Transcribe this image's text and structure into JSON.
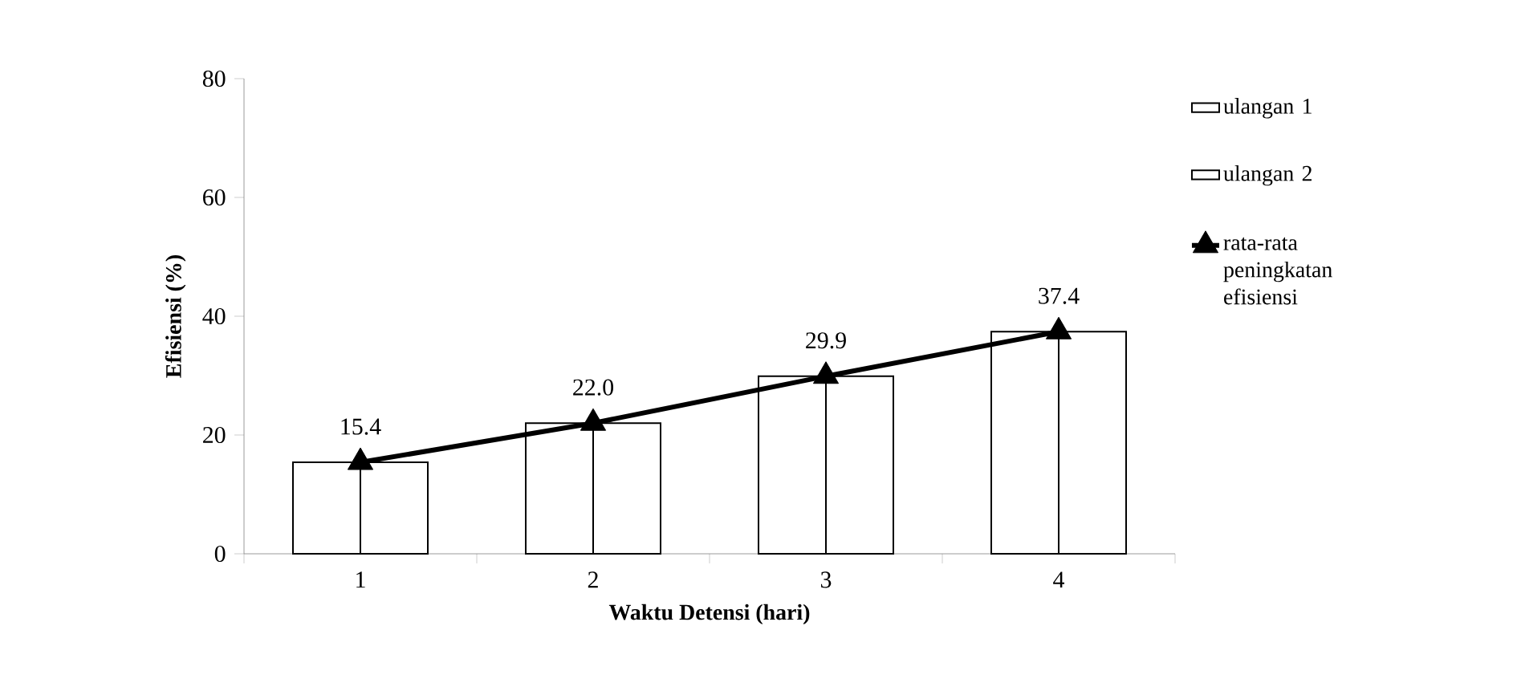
{
  "chart_data": {
    "type": "bar",
    "xlabel": "Waktu Detensi (hari)",
    "ylabel": "Efisiensi (%)",
    "categories": [
      "1",
      "2",
      "3",
      "4"
    ],
    "series": [
      {
        "name": "ulangan 1",
        "color": "#ffffff",
        "values": [
          15.4,
          22.0,
          29.9,
          37.4
        ]
      },
      {
        "name": "ulangan 2",
        "color": "#ffffff",
        "values": [
          15.4,
          22.0,
          29.9,
          37.4
        ]
      },
      {
        "name": "rata-rata peningkatan efisiensi",
        "type": "line",
        "color": "#000000",
        "marker": "triangle",
        "values": [
          15.4,
          22.0,
          29.9,
          37.4
        ],
        "value_labels": [
          "15.4",
          "22.0",
          "29.9",
          "37.4"
        ]
      }
    ],
    "ylim": [
      0,
      80
    ],
    "yticks": [
      0,
      20,
      40,
      60,
      80
    ],
    "grid": false,
    "legend": "right"
  }
}
